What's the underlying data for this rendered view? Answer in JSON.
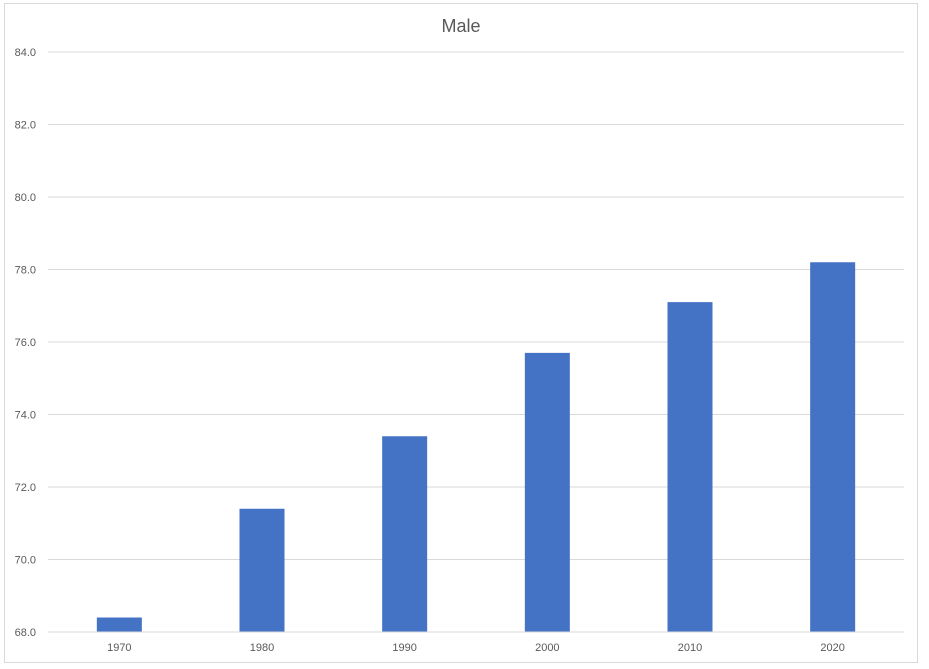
{
  "chart_data": {
    "type": "bar",
    "title": "Male",
    "categories": [
      "1970",
      "1980",
      "1990",
      "2000",
      "2010",
      "2020"
    ],
    "values": [
      68.4,
      71.4,
      73.4,
      75.7,
      77.1,
      78.2
    ],
    "xlabel": "",
    "ylabel": "",
    "ylim": [
      68.0,
      84.0
    ],
    "yticks": [
      "68.0",
      "70.0",
      "72.0",
      "74.0",
      "76.0",
      "78.0",
      "80.0",
      "82.0",
      "84.0"
    ],
    "grid": true,
    "legend": "none",
    "bar_color": "#4472c4",
    "grid_color": "#d9d9d9"
  }
}
